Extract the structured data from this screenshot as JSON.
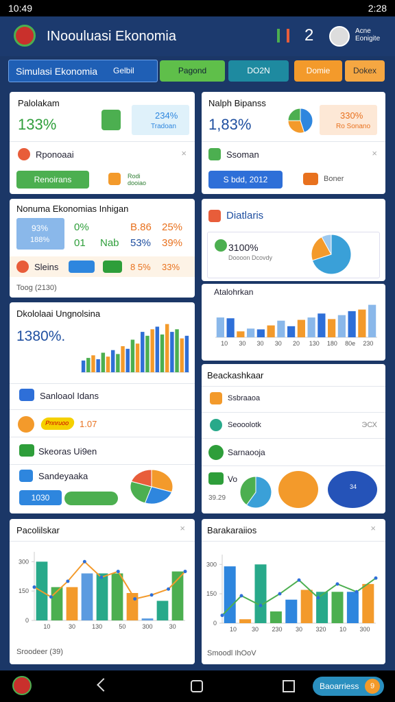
{
  "status": {
    "time": "10:49",
    "clock": "2:28"
  },
  "header": {
    "title": "INoouluasi Ekonomia",
    "badge": "2",
    "user": "Acne Eonigite"
  },
  "tabs": [
    "Simulasi Ekonomia",
    "Gelbil",
    "Pagond",
    "DO2N",
    "Domie",
    "Dokex"
  ],
  "card1": {
    "title": "Palolakam",
    "value": "133%",
    "box_value": "234%",
    "box_label": "Tradoan",
    "row": "Rponoaai",
    "button": "Renoirans",
    "note": "Rodi dooiao"
  },
  "card2": {
    "title": "Nalph Bipanss",
    "value": "1,83%",
    "box_value": "330%",
    "box_label": "Ro Sonano",
    "row": "Ssoman",
    "button": "S bdd, 2012",
    "note": "Boner"
  },
  "card3": {
    "title": "Nonuma Ekonomias Inhigan",
    "cells": [
      "93%",
      "188%",
      "0%",
      "B.86",
      "25%",
      "01",
      "Nab",
      "53%",
      "39%"
    ],
    "row": "Sleins",
    "row_values": [
      "8 5%",
      "33%"
    ],
    "footer": "Toog (2130)"
  },
  "card4": {
    "title": "Diatlaris",
    "value": "3100%",
    "label": "Doooon Dcovdy"
  },
  "card5": {
    "title": "Dkololaai Ungnolsina",
    "value": "1380%.",
    "items": [
      "Sanloaol Idans",
      "1.07",
      "Skeoras Ui9en",
      "Sandeyaaka"
    ],
    "tag": "Pnnruoo",
    "button": "1030"
  },
  "card6": {
    "title": "Atalohrkan"
  },
  "card7": {
    "title": "Beackashkaar",
    "items": [
      "Ssbraaoa",
      "Seooolotk",
      "Sarnaooja",
      "Vo"
    ],
    "side": "ЭСХ",
    "note": "39.29",
    "badge": "34"
  },
  "card8": {
    "title": "Pacolilskar",
    "footer": "Sroodeer (39)"
  },
  "card9": {
    "title": "Barakaraiios",
    "footer": "Smoodl IhOoV"
  },
  "nav": {
    "button": "Baoarriess",
    "badge": "9"
  },
  "charts": [
    {
      "type": "bar",
      "values": [
        18,
        22,
        26,
        20,
        30,
        24,
        34,
        28,
        40,
        36,
        50,
        44,
        62,
        56,
        66,
        70,
        58,
        74,
        62,
        66,
        52,
        56
      ],
      "palette": [
        "#2f6fd6",
        "#4caf50",
        "#f39a2b"
      ],
      "ylim": [
        0,
        80
      ]
    },
    {
      "type": "bar",
      "values": [
        50,
        48,
        15,
        22,
        20,
        30,
        42,
        28,
        44,
        50,
        60,
        46,
        56,
        66,
        70,
        82
      ],
      "palette": [
        "#8ab8ea",
        "#2e6fd8",
        "#f39a2b"
      ],
      "ylim": [
        0,
        90
      ],
      "xlabels": [
        "10",
        "30",
        "30",
        "30",
        "20",
        "130",
        "180",
        "80e",
        "230"
      ]
    },
    {
      "type": "bar",
      "values": [
        300,
        170,
        170,
        240,
        240,
        240,
        140,
        10,
        100,
        250
      ],
      "palette": [
        "#28a98a",
        "#4caf50",
        "#f39a2b",
        "#5b9be0"
      ],
      "line": [
        170,
        120,
        200,
        300,
        220,
        250,
        110,
        130,
        160,
        250
      ],
      "line_color": "#f39a2b",
      "ylim": [
        0,
        350
      ],
      "yticks": [
        0,
        150,
        300
      ],
      "xlabels": [
        "10",
        "30",
        "130",
        "50",
        "300",
        "30"
      ]
    },
    {
      "type": "bar",
      "values": [
        290,
        20,
        300,
        60,
        120,
        170,
        160,
        160,
        160,
        200
      ],
      "palette": [
        "#2e86de",
        "#f39a2b",
        "#28a98a",
        "#4caf50"
      ],
      "line": [
        40,
        140,
        90,
        150,
        220,
        130,
        200,
        160,
        230
      ],
      "line_color": "#4caf50",
      "ylim": [
        0,
        350
      ],
      "yticks": [
        0,
        150,
        300
      ],
      "xlabels": [
        "10",
        "30",
        "230",
        "30",
        "320",
        "10",
        "300"
      ]
    }
  ],
  "pies": [
    {
      "values": [
        45,
        30,
        25
      ],
      "colors": [
        "#2e86de",
        "#f39a2b",
        "#4caf50"
      ]
    },
    {
      "values": [
        70,
        22,
        8
      ],
      "colors": [
        "#3aa0d8",
        "#f39a2b",
        "#9cc8ee"
      ]
    },
    {
      "values": [
        30,
        25,
        25,
        20
      ],
      "colors": [
        "#f39a2b",
        "#2e86de",
        "#4caf50",
        "#e85d3a"
      ]
    },
    {
      "values": [
        60,
        40
      ],
      "colors": [
        "#3aa0d8",
        "#4caf50"
      ]
    },
    {
      "values": [
        100
      ],
      "colors": [
        "#f39a2b"
      ]
    },
    {
      "values": [
        100
      ],
      "colors": [
        "#2553b8"
      ]
    }
  ]
}
